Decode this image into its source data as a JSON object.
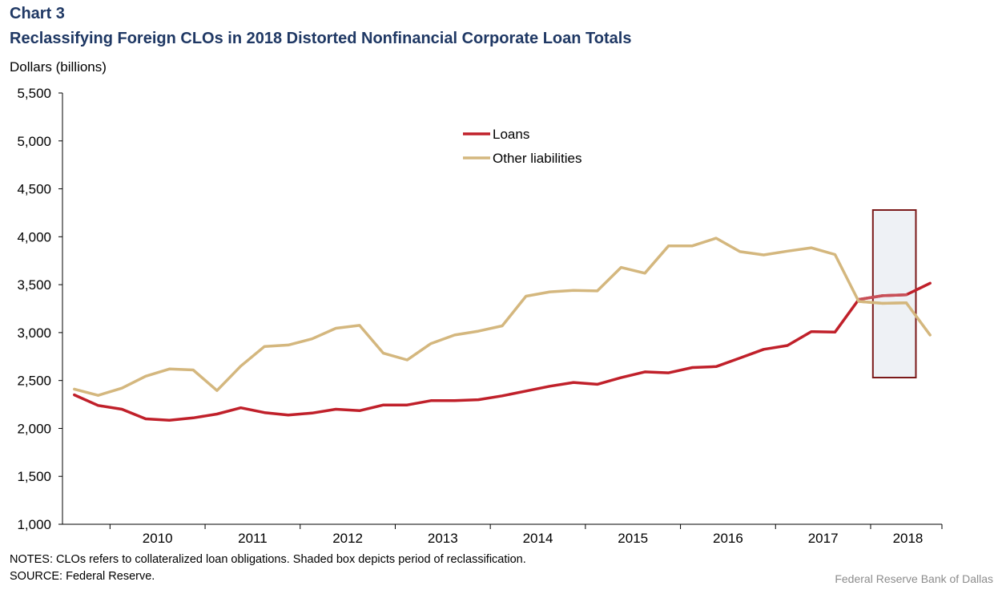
{
  "header": {
    "chart_number": "Chart 3",
    "title": "Reclassifying Foreign CLOs in 2018 Distorted Nonfinancial Corporate Loan Totals",
    "units": "Dollars (billions)"
  },
  "footer": {
    "notes": "NOTES: CLOs refers to collateralized loan obligations. Shaded box depicts period of reclassification.",
    "source": "SOURCE: Federal Reserve.",
    "credit": "Federal Reserve Bank of Dallas"
  },
  "colors": {
    "loans": "#c0202a",
    "loans_highlight": "#c85058",
    "other": "#d4b77e",
    "box_border": "#7b1a1a",
    "box_fill": "#eef1f5",
    "title": "#1f3864"
  },
  "chart_data": {
    "type": "line",
    "title": "Reclassifying Foreign CLOs in 2018 Distorted Nonfinancial Corporate Loan Totals",
    "ylabel": "Dollars (billions)",
    "ylim": [
      1000,
      5500
    ],
    "yticks": [
      1000,
      1500,
      2000,
      2500,
      3000,
      3500,
      4000,
      4500,
      5000,
      5500
    ],
    "ytick_labels": [
      "1,000",
      "1,500",
      "2,000",
      "2,500",
      "3,000",
      "3,500",
      "4,000",
      "4,500",
      "5,000",
      "5,500"
    ],
    "year_labels": [
      "2010",
      "2011",
      "2012",
      "2013",
      "2014",
      "2015",
      "2016",
      "2017",
      "2018"
    ],
    "x": [
      "2009Q3",
      "2009Q4",
      "2010Q1",
      "2010Q2",
      "2010Q3",
      "2010Q4",
      "2011Q1",
      "2011Q2",
      "2011Q3",
      "2011Q4",
      "2012Q1",
      "2012Q2",
      "2012Q3",
      "2012Q4",
      "2013Q1",
      "2013Q2",
      "2013Q3",
      "2013Q4",
      "2014Q1",
      "2014Q2",
      "2014Q3",
      "2014Q4",
      "2015Q1",
      "2015Q2",
      "2015Q3",
      "2015Q4",
      "2016Q1",
      "2016Q2",
      "2016Q3",
      "2016Q4",
      "2017Q1",
      "2017Q2",
      "2017Q3",
      "2017Q4",
      "2018Q1",
      "2018Q2",
      "2018Q3"
    ],
    "series": [
      {
        "name": "Loans",
        "values": [
          2350,
          2240,
          2200,
          2100,
          2085,
          2110,
          2150,
          2215,
          2165,
          2140,
          2160,
          2200,
          2185,
          2245,
          2245,
          2290,
          2290,
          2300,
          2340,
          2390,
          2440,
          2480,
          2460,
          2530,
          2590,
          2580,
          2635,
          2645,
          2735,
          2825,
          2865,
          3010,
          3005,
          3345,
          3385,
          3395,
          3515
        ]
      },
      {
        "name": "Other liabilities",
        "values": [
          2410,
          2345,
          2420,
          2545,
          2620,
          2610,
          2395,
          2650,
          2855,
          2870,
          2935,
          3045,
          3075,
          2785,
          2715,
          2885,
          2975,
          3015,
          3070,
          3380,
          3425,
          3440,
          3435,
          3680,
          3620,
          3905,
          3905,
          3985,
          3845,
          3810,
          3850,
          3885,
          3815,
          3325,
          3305,
          3310,
          2975
        ]
      }
    ],
    "highlight_period": [
      "2018Q1",
      "2018Q2"
    ],
    "legend": {
      "placement": "top-center"
    },
    "grid": false
  }
}
